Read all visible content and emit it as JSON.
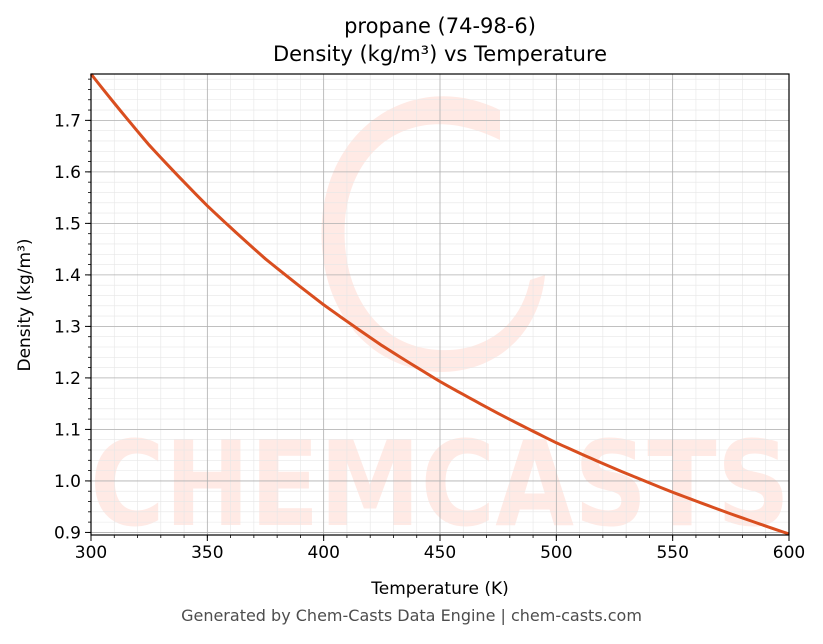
{
  "chart_data": {
    "type": "line",
    "title": "propane (74-98-6)",
    "subtitle": "Density (kg/m³) vs Temperature",
    "xlabel": "Temperature (K)",
    "ylabel": "Density (kg/m³)",
    "xlim": [
      300,
      600
    ],
    "ylim": [
      0.895,
      1.79
    ],
    "xticks": [
      300,
      350,
      400,
      450,
      500,
      550,
      600
    ],
    "yticks": [
      0.9,
      1.0,
      1.1,
      1.2,
      1.3,
      1.4,
      1.5,
      1.6,
      1.7
    ],
    "grid": true,
    "line_color": "#d94e1f",
    "watermark_text": "CHEMCASTS",
    "series": [
      {
        "x": [
          300,
          325,
          350,
          375,
          400,
          425,
          450,
          475,
          500,
          525,
          550,
          575,
          600
        ],
        "values": [
          1.79,
          1.652,
          1.534,
          1.431,
          1.342,
          1.263,
          1.193,
          1.131,
          1.074,
          1.024,
          0.978,
          0.936,
          0.897
        ]
      }
    ]
  },
  "footer": {
    "text": "Generated by Chem-Casts Data Engine | chem-casts.com"
  }
}
